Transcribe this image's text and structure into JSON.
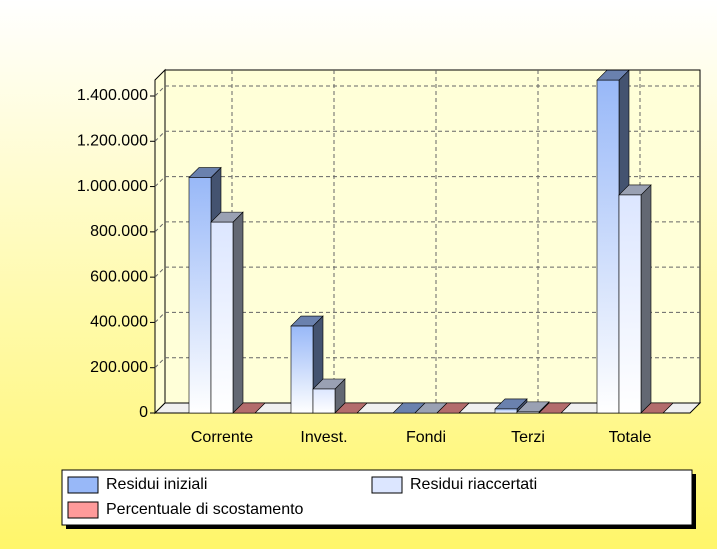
{
  "chart_data": {
    "type": "bar3d",
    "categories": [
      "Corrente",
      "Invest.",
      "Fondi",
      "Terzi",
      "Totale"
    ],
    "series": [
      {
        "name": "Residui iniziali",
        "color": "#98b8f8",
        "values": [
          1040000,
          384000,
          0,
          18000,
          1470000
        ]
      },
      {
        "name": "Residui riaccertati",
        "color": "#dce6ff",
        "values": [
          843000,
          106000,
          0,
          5000,
          963000
        ]
      },
      {
        "name": "Percentuale di scostamento",
        "color": "#ff9a9a",
        "values": [
          0,
          0,
          0,
          0,
          0
        ]
      }
    ],
    "ylim": [
      0,
      1500000
    ],
    "yticks": [
      0,
      {
        "value": 200000,
        "label": "200.000"
      },
      {
        "value": 400000,
        "label": "400.000"
      },
      {
        "value": 600000,
        "label": "600.000"
      },
      {
        "value": 800000,
        "label": "800.000"
      },
      {
        "value": 1000000,
        "label": "1.000.000"
      },
      {
        "value": 1200000,
        "label": "1.200.000"
      },
      {
        "value": 1400000,
        "label": "1.400.000"
      }
    ],
    "grid": true
  }
}
